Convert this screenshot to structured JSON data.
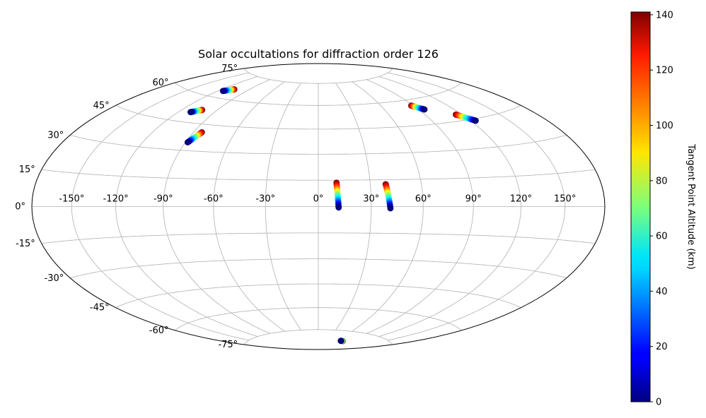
{
  "chart_data": {
    "type": "scatter",
    "projection": "hammer",
    "title": "Solar occultations for diffraction order 126",
    "grid": true,
    "lon_ticks": [
      "-150°",
      "-120°",
      "-90°",
      "-60°",
      "-30°",
      "0°",
      "30°",
      "60°",
      "90°",
      "120°",
      "150°"
    ],
    "lat_ticks": [
      "75°",
      "60°",
      "45°",
      "30°",
      "15°",
      "0°",
      "-15°",
      "-30°",
      "-45°",
      "-60°",
      "-75°"
    ],
    "colorbar": {
      "label": "Tangent Point Altitude (km)",
      "colormap": "jet",
      "range": [
        0,
        141
      ],
      "ticks": [
        "0",
        "20",
        "40",
        "60",
        "80",
        "100",
        "120",
        "140"
      ]
    },
    "tracks": [
      {
        "lon_start": 11.5,
        "lat_start": -0.5,
        "lon_end": 10.5,
        "lat_end": 13.5
      },
      {
        "lon_start": 41.0,
        "lat_start": -1.0,
        "lon_end": 39.0,
        "lat_end": 12.5
      },
      {
        "lon_start": -88.5,
        "lat_start": 34.5,
        "lon_end": -84.0,
        "lat_end": 40.5
      },
      {
        "lon_start": -110.0,
        "lat_start": 50.5,
        "lon_end": -103.0,
        "lat_end": 52.5
      },
      {
        "lon_start": -115.0,
        "lat_start": 64.0,
        "lon_end": -107.0,
        "lat_end": 66.0
      },
      {
        "lon_start": 95.0,
        "lat_start": 53.5,
        "lon_end": 88.0,
        "lat_end": 56.5
      },
      {
        "lon_start": 124.0,
        "lat_start": 44.0,
        "lon_end": 115.0,
        "lat_end": 48.5
      },
      {
        "lon_start": 73.0,
        "lat_start": -82.0,
        "lon_end": 80.0,
        "lat_end": -82.0
      }
    ],
    "track_altitude_range_km": [
      0,
      141
    ]
  }
}
